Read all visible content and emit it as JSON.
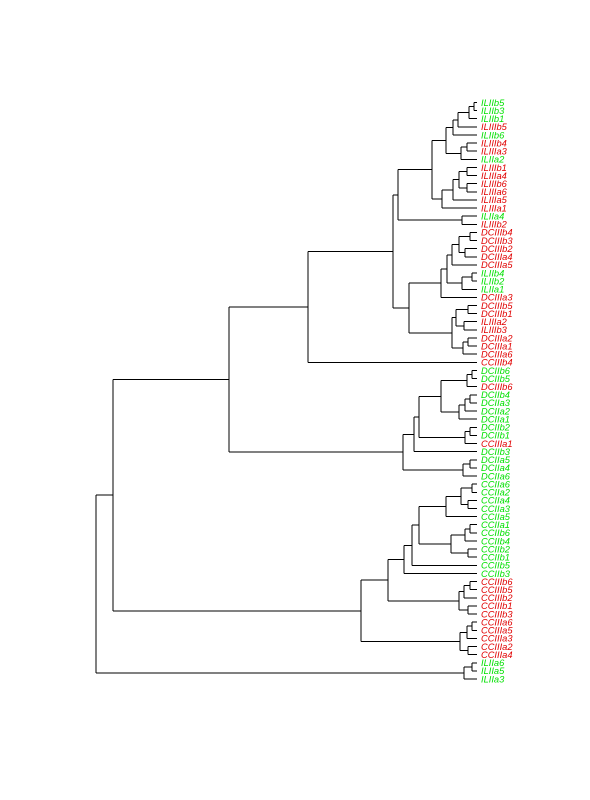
{
  "colors": {
    "green": "#00e000",
    "red": "#e00000"
  },
  "leaves": [
    {
      "label": "ILIIb5",
      "color": "green"
    },
    {
      "label": "ILIIb3",
      "color": "green"
    },
    {
      "label": "ILIIb1",
      "color": "green"
    },
    {
      "label": "ILIIIb5",
      "color": "red"
    },
    {
      "label": "ILIIb6",
      "color": "green"
    },
    {
      "label": "ILIIIb4",
      "color": "red"
    },
    {
      "label": "ILIIIa3",
      "color": "red"
    },
    {
      "label": "ILIIa2",
      "color": "green"
    },
    {
      "label": "ILIIIb1",
      "color": "red"
    },
    {
      "label": "ILIIIa4",
      "color": "red"
    },
    {
      "label": "ILIIIb6",
      "color": "red"
    },
    {
      "label": "ILIIIa6",
      "color": "red"
    },
    {
      "label": "ILIIIa5",
      "color": "red"
    },
    {
      "label": "ILIIIa1",
      "color": "red"
    },
    {
      "label": "ILIIa4",
      "color": "green"
    },
    {
      "label": "ILIIIb2",
      "color": "red"
    },
    {
      "label": "DCIIIb4",
      "color": "red"
    },
    {
      "label": "DCIIIb3",
      "color": "red"
    },
    {
      "label": "DCIIIb2",
      "color": "red"
    },
    {
      "label": "DCIIIa4",
      "color": "red"
    },
    {
      "label": "DCIIIa5",
      "color": "red"
    },
    {
      "label": "ILIIb4",
      "color": "green"
    },
    {
      "label": "ILIIb2",
      "color": "green"
    },
    {
      "label": "ILIIa1",
      "color": "green"
    },
    {
      "label": "DCIIIa3",
      "color": "red"
    },
    {
      "label": "DCIIIb5",
      "color": "red"
    },
    {
      "label": "DCIIIb1",
      "color": "red"
    },
    {
      "label": "ILIIIa2",
      "color": "red"
    },
    {
      "label": "ILIIIb3",
      "color": "red"
    },
    {
      "label": "DCIIIa2",
      "color": "red"
    },
    {
      "label": "DCIIIa1",
      "color": "red"
    },
    {
      "label": "DCIIIa6",
      "color": "red"
    },
    {
      "label": "CCIIIb4",
      "color": "red"
    },
    {
      "label": "DCIIb6",
      "color": "green"
    },
    {
      "label": "DCIIb5",
      "color": "green"
    },
    {
      "label": "DCIIIb6",
      "color": "red"
    },
    {
      "label": "DCIIb4",
      "color": "green"
    },
    {
      "label": "DCIIa3",
      "color": "green"
    },
    {
      "label": "DCIIa2",
      "color": "green"
    },
    {
      "label": "DCIIa1",
      "color": "green"
    },
    {
      "label": "DCIIb2",
      "color": "green"
    },
    {
      "label": "DCIIb1",
      "color": "green"
    },
    {
      "label": "CCIIIa1",
      "color": "red"
    },
    {
      "label": "DCIIb3",
      "color": "green"
    },
    {
      "label": "DCIIa5",
      "color": "green"
    },
    {
      "label": "DCIIa4",
      "color": "green"
    },
    {
      "label": "DCIIa6",
      "color": "green"
    },
    {
      "label": "CCIIa6",
      "color": "green"
    },
    {
      "label": "CCIIa2",
      "color": "green"
    },
    {
      "label": "CCIIa4",
      "color": "green"
    },
    {
      "label": "CCIIa3",
      "color": "green"
    },
    {
      "label": "CCIIa5",
      "color": "green"
    },
    {
      "label": "CCIIa1",
      "color": "green"
    },
    {
      "label": "CCIIb6",
      "color": "green"
    },
    {
      "label": "CCIIb4",
      "color": "green"
    },
    {
      "label": "CCIIb2",
      "color": "green"
    },
    {
      "label": "CCIIb1",
      "color": "green"
    },
    {
      "label": "CCIIb5",
      "color": "green"
    },
    {
      "label": "CCIIb3",
      "color": "green"
    },
    {
      "label": "CCIIIb6",
      "color": "red"
    },
    {
      "label": "CCIIIb5",
      "color": "red"
    },
    {
      "label": "CCIIIb2",
      "color": "red"
    },
    {
      "label": "CCIIIb1",
      "color": "red"
    },
    {
      "label": "CCIIIb3",
      "color": "red"
    },
    {
      "label": "CCIIIa6",
      "color": "red"
    },
    {
      "label": "CCIIIa5",
      "color": "red"
    },
    {
      "label": "CCIIIa3",
      "color": "red"
    },
    {
      "label": "CCIIIa2",
      "color": "red"
    },
    {
      "label": "CCIIIa4",
      "color": "red"
    },
    {
      "label": "ILIIa6",
      "color": "green"
    },
    {
      "label": "ILIIa5",
      "color": "green"
    },
    {
      "label": "ILIIa3",
      "color": "green"
    }
  ]
}
